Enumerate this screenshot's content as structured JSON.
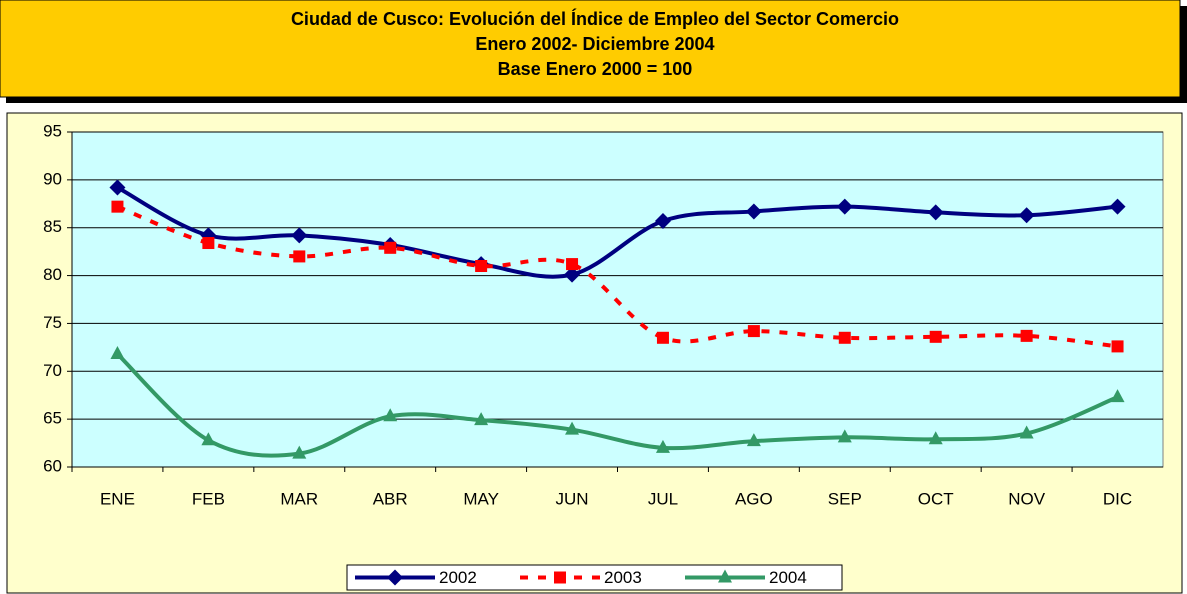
{
  "chart_data": {
    "type": "line",
    "title": [
      "Ciudad de Cusco: Evolución del Índice de Empleo del Sector Comercio",
      "Enero 2002- Diciembre 2004",
      "Base Enero 2000  =  100"
    ],
    "categories": [
      "ENE",
      "FEB",
      "MAR",
      "ABR",
      "MAY",
      "JUN",
      "JUL",
      "AGO",
      "SEP",
      "OCT",
      "NOV",
      "DIC"
    ],
    "series": [
      {
        "name": "2002",
        "color": "#000080",
        "marker": "diamond",
        "dashed": false,
        "values": [
          89.2,
          84.2,
          84.2,
          83.2,
          81.2,
          80.1,
          85.7,
          86.7,
          87.2,
          86.6,
          86.3,
          87.2
        ]
      },
      {
        "name": "2003",
        "color": "#ff0000",
        "marker": "square",
        "dashed": true,
        "values": [
          87.2,
          83.4,
          82.0,
          82.9,
          81.0,
          81.2,
          73.5,
          74.2,
          73.5,
          73.6,
          73.7,
          72.6
        ]
      },
      {
        "name": "2004",
        "color": "#339966",
        "marker": "triangle",
        "dashed": false,
        "values": [
          71.8,
          62.8,
          61.4,
          65.3,
          64.9,
          63.9,
          62.0,
          62.7,
          63.1,
          62.9,
          63.5,
          67.3
        ]
      }
    ],
    "ylim": [
      60,
      95
    ],
    "yticks": [
      60,
      65,
      70,
      75,
      80,
      85,
      90,
      95
    ],
    "grid": true,
    "legend": "bottom"
  }
}
